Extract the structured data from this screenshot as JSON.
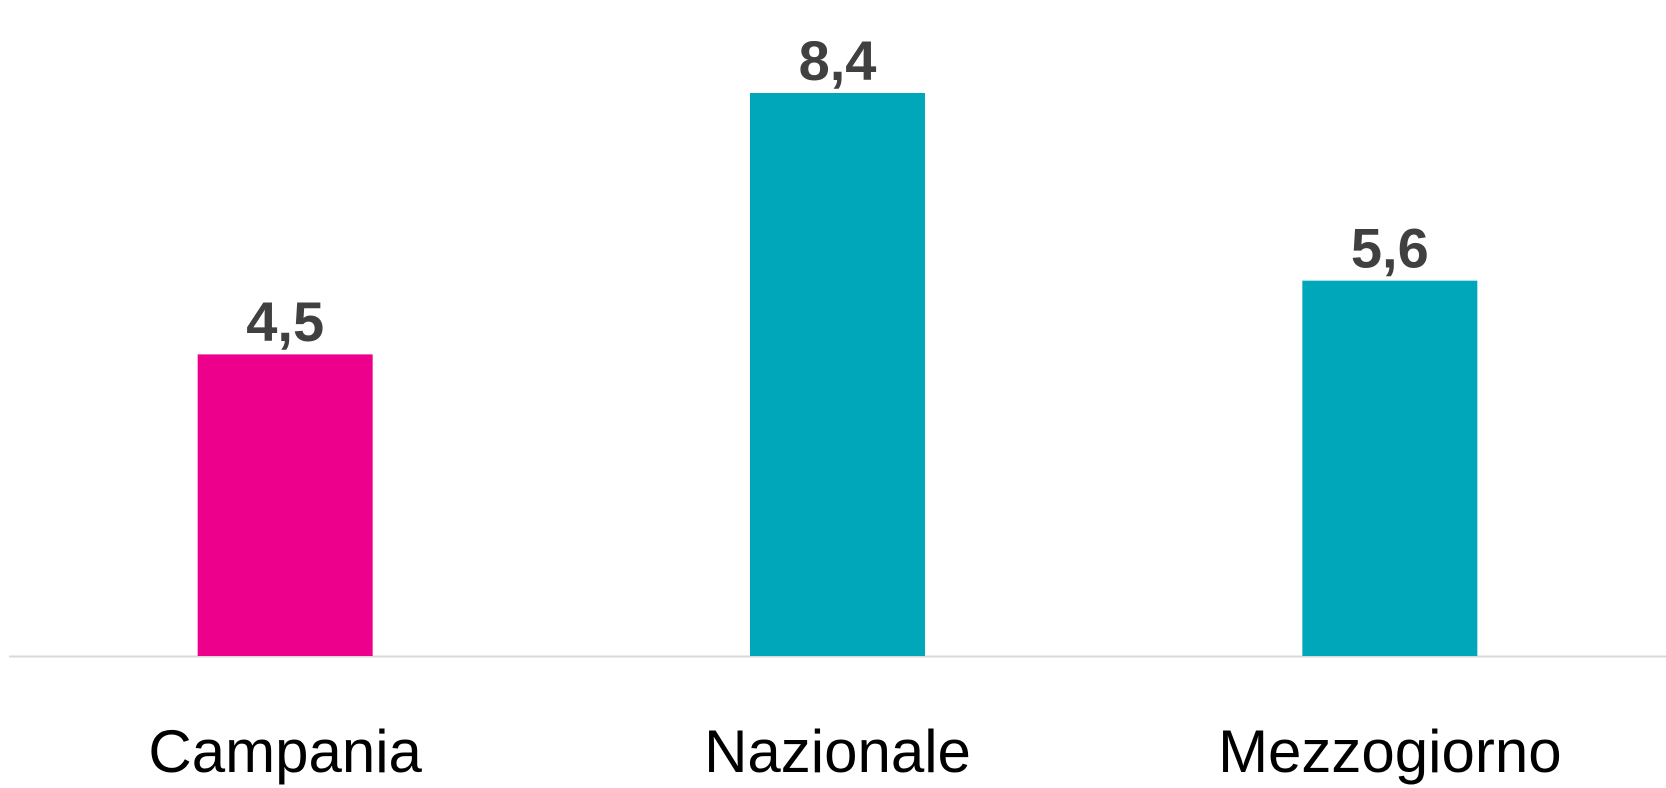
{
  "chart_data": {
    "type": "bar",
    "categories": [
      "Campania",
      "Nazionale",
      "Mezzogiorno"
    ],
    "values": [
      4.5,
      8.4,
      5.6
    ],
    "value_labels": [
      "4,5",
      "8,4",
      "5,6"
    ],
    "colors": [
      "#ec008c",
      "#00a6ba",
      "#00a6ba"
    ]
  }
}
